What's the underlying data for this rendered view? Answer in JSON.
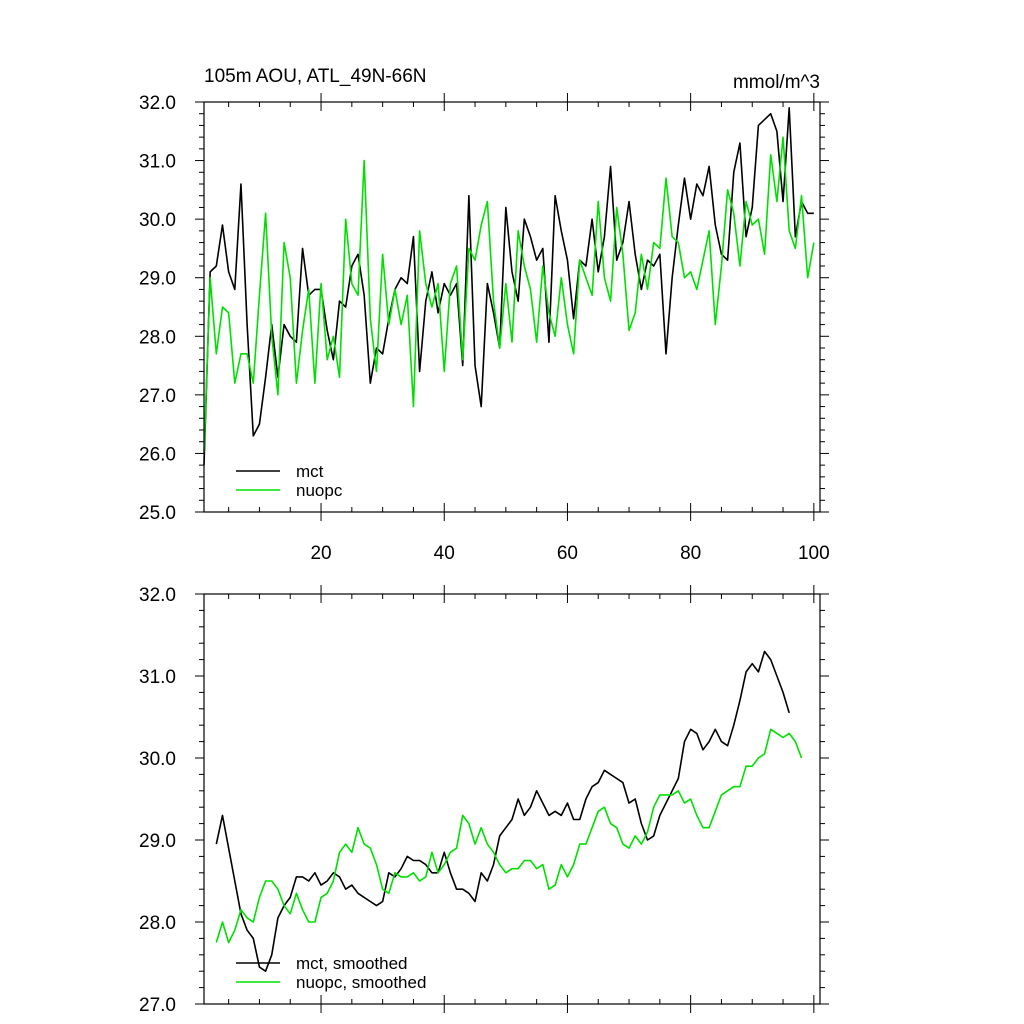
{
  "chart_data": [
    {
      "type": "line",
      "title": "105m AOU, ATL_49N-66N",
      "units": "mmol/m^3",
      "xlim": [
        1,
        101
      ],
      "ylim": [
        25.0,
        32.0
      ],
      "xticks": [
        20,
        40,
        60,
        80,
        100
      ],
      "xtick_labels": [
        "20",
        "40",
        "60",
        "80",
        "100"
      ],
      "yticks": [
        25.0,
        26.0,
        27.0,
        28.0,
        29.0,
        30.0,
        31.0,
        32.0
      ],
      "ytick_labels": [
        "25.0",
        "26.0",
        "27.0",
        "28.0",
        "29.0",
        "30.0",
        "31.0",
        "32.0"
      ],
      "legend_position": "lower-left",
      "series": [
        {
          "name": "mct",
          "color": "#000000",
          "x_start": 1,
          "values": [
            25.8,
            29.1,
            29.2,
            29.9,
            29.1,
            28.8,
            30.6,
            28.2,
            26.3,
            26.5,
            27.3,
            28.2,
            27.3,
            28.2,
            28.0,
            27.9,
            29.5,
            28.7,
            28.8,
            28.8,
            28.1,
            27.6,
            28.6,
            28.5,
            29.2,
            29.4,
            28.7,
            27.2,
            27.8,
            27.7,
            28.3,
            28.8,
            29.0,
            28.9,
            29.7,
            27.4,
            28.6,
            29.1,
            28.4,
            28.9,
            28.7,
            28.9,
            27.5,
            30.4,
            27.5,
            26.8,
            28.9,
            28.4,
            27.8,
            30.2,
            29.1,
            28.6,
            30.0,
            29.7,
            29.3,
            29.5,
            27.9,
            30.4,
            29.8,
            29.3,
            28.3,
            29.3,
            29.2,
            30.0,
            29.1,
            29.7,
            30.9,
            29.3,
            29.6,
            30.3,
            29.4,
            28.8,
            29.3,
            29.2,
            29.4,
            27.7,
            29.0,
            29.9,
            30.7,
            30.0,
            30.6,
            30.4,
            30.9,
            29.9,
            29.4,
            29.3,
            30.8,
            31.3,
            29.7,
            30.2,
            31.6,
            31.7,
            31.8,
            31.5,
            30.3,
            31.9,
            29.7,
            30.3,
            30.1,
            30.1
          ]
        },
        {
          "name": "nuopc",
          "color": "#00e000",
          "x_start": 1,
          "values": [
            26.0,
            29.0,
            27.7,
            28.5,
            28.4,
            27.2,
            27.7,
            27.7,
            27.2,
            28.7,
            30.1,
            28.0,
            27.0,
            29.6,
            29.0,
            27.2,
            28.1,
            28.8,
            27.2,
            28.9,
            27.6,
            28.0,
            27.3,
            30.0,
            28.9,
            28.7,
            31.0,
            28.3,
            27.4,
            29.4,
            28.2,
            28.8,
            28.2,
            28.7,
            26.8,
            29.8,
            28.9,
            28.5,
            28.9,
            27.4,
            28.9,
            29.2,
            27.6,
            29.5,
            29.3,
            29.9,
            30.3,
            28.6,
            27.8,
            28.9,
            27.9,
            29.8,
            29.2,
            28.8,
            27.9,
            29.2,
            28.4,
            28.0,
            29.0,
            28.2,
            27.7,
            29.3,
            29.0,
            28.7,
            30.3,
            29.0,
            28.6,
            30.2,
            29.4,
            28.1,
            28.4,
            29.4,
            28.8,
            29.6,
            29.5,
            30.7,
            29.7,
            29.6,
            29.0,
            29.1,
            28.8,
            29.3,
            29.8,
            28.2,
            29.2,
            30.5,
            30.1,
            29.2,
            30.3,
            29.9,
            30.0,
            29.4,
            31.1,
            30.3,
            31.4,
            29.8,
            29.5,
            30.4,
            29.0,
            29.6
          ]
        }
      ]
    },
    {
      "type": "line",
      "title": "",
      "xlim": [
        1,
        101
      ],
      "ylim": [
        27.0,
        32.0
      ],
      "yticks": [
        27.0,
        28.0,
        29.0,
        30.0,
        31.0,
        32.0
      ],
      "ytick_labels": [
        "27.0",
        "28.0",
        "29.0",
        "30.0",
        "31.0",
        "32.0"
      ],
      "legend_position": "lower-left",
      "series": [
        {
          "name": "mct, smoothed",
          "color": "#000000",
          "x_start": 3,
          "values": [
            28.95,
            29.3,
            28.9,
            28.5,
            28.1,
            27.9,
            27.8,
            27.45,
            27.4,
            27.6,
            28.05,
            28.2,
            28.3,
            28.55,
            28.55,
            28.5,
            28.6,
            28.45,
            28.5,
            28.6,
            28.55,
            28.4,
            28.45,
            28.35,
            28.3,
            28.25,
            28.2,
            28.25,
            28.6,
            28.55,
            28.65,
            28.8,
            28.75,
            28.75,
            28.7,
            28.6,
            28.6,
            28.85,
            28.6,
            28.4,
            28.4,
            28.35,
            28.25,
            28.6,
            28.5,
            28.7,
            29.05,
            29.15,
            29.25,
            29.5,
            29.3,
            29.4,
            29.6,
            29.45,
            29.3,
            29.35,
            29.3,
            29.45,
            29.25,
            29.25,
            29.5,
            29.65,
            29.7,
            29.85,
            29.8,
            29.75,
            29.7,
            29.45,
            29.5,
            29.2,
            29.0,
            29.05,
            29.3,
            29.45,
            29.6,
            29.75,
            30.2,
            30.35,
            30.3,
            30.1,
            30.2,
            30.35,
            30.2,
            30.15,
            30.4,
            30.7,
            31.05,
            31.15,
            31.05,
            31.3,
            31.2,
            31.0,
            30.8,
            30.55
          ]
        },
        {
          "name": "nuopc, smoothed",
          "color": "#00e000",
          "x_start": 3,
          "values": [
            27.75,
            28.0,
            27.75,
            27.9,
            28.15,
            28.05,
            28.0,
            28.3,
            28.5,
            28.5,
            28.4,
            28.2,
            28.1,
            28.35,
            28.15,
            28.0,
            28.0,
            28.3,
            28.35,
            28.5,
            28.85,
            28.95,
            28.85,
            29.15,
            28.95,
            28.9,
            28.7,
            28.4,
            28.35,
            28.6,
            28.55,
            28.55,
            28.6,
            28.5,
            28.55,
            28.85,
            28.6,
            28.7,
            28.85,
            28.9,
            29.3,
            29.2,
            28.95,
            29.15,
            28.95,
            28.85,
            28.7,
            28.6,
            28.65,
            28.65,
            28.75,
            28.75,
            28.65,
            28.7,
            28.4,
            28.45,
            28.7,
            28.55,
            28.7,
            28.95,
            28.95,
            29.15,
            29.35,
            29.4,
            29.2,
            29.15,
            28.95,
            28.9,
            29.05,
            28.95,
            29.1,
            29.4,
            29.55,
            29.55,
            29.55,
            29.6,
            29.45,
            29.5,
            29.3,
            29.15,
            29.15,
            29.35,
            29.55,
            29.6,
            29.65,
            29.65,
            29.9,
            29.9,
            30.0,
            30.05,
            30.35,
            30.3,
            30.25,
            30.3,
            30.2,
            30.0
          ]
        }
      ]
    }
  ]
}
